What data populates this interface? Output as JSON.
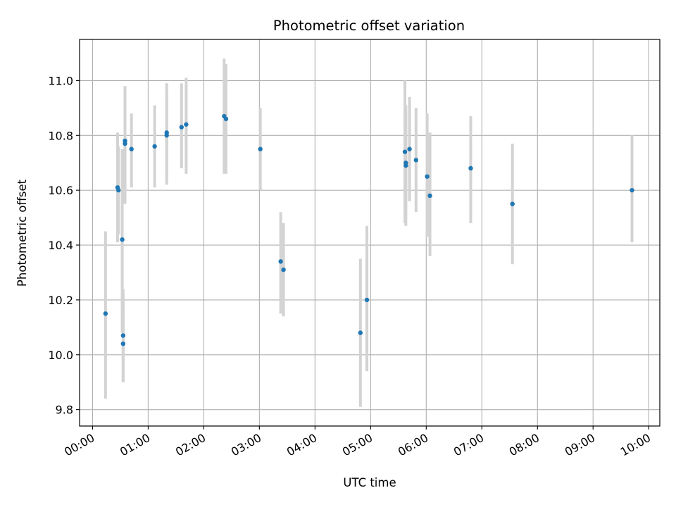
{
  "chart_data": {
    "type": "scatter",
    "title": "Photometric offset variation",
    "xlabel": "UTC time",
    "ylabel": "Photometric offset",
    "x_unit": "UTC time (HH:MM)",
    "xlim": [
      "23:46",
      "10:12"
    ],
    "ylim": [
      9.74,
      11.15
    ],
    "xticks": [
      "00:00",
      "01:00",
      "02:00",
      "03:00",
      "04:00",
      "05:00",
      "06:00",
      "07:00",
      "08:00",
      "09:00",
      "10:00"
    ],
    "yticks": [
      9.8,
      10.0,
      10.2,
      10.4,
      10.6,
      10.8,
      11.0
    ],
    "ytick_labels": [
      "9.8",
      "10.0",
      "10.2",
      "10.4",
      "10.6",
      "10.8",
      "11.0"
    ],
    "grid": true,
    "marker_color": "#1f77b4",
    "errorbar_color": "#d3d3d3",
    "points": [
      {
        "x": "00:14",
        "y": 10.15,
        "ylow": 9.84,
        "yhigh": 10.45
      },
      {
        "x": "00:27",
        "y": 10.61,
        "ylow": 10.41,
        "yhigh": 10.81
      },
      {
        "x": "00:28",
        "y": 10.6,
        "ylow": 10.44,
        "yhigh": 10.76
      },
      {
        "x": "00:32",
        "y": 10.42,
        "ylow": 10.08,
        "yhigh": 10.75
      },
      {
        "x": "00:33",
        "y": 10.07,
        "ylow": 9.9,
        "yhigh": 10.24
      },
      {
        "x": "00:33",
        "y": 10.04,
        "ylow": 9.9,
        "yhigh": 10.18
      },
      {
        "x": "00:35",
        "y": 10.78,
        "ylow": 10.57,
        "yhigh": 10.98
      },
      {
        "x": "00:35",
        "y": 10.77,
        "ylow": 10.55,
        "yhigh": 10.75
      },
      {
        "x": "00:42",
        "y": 10.75,
        "ylow": 10.61,
        "yhigh": 10.88
      },
      {
        "x": "01:07",
        "y": 10.76,
        "ylow": 10.61,
        "yhigh": 10.91
      },
      {
        "x": "01:20",
        "y": 10.81,
        "ylow": 10.62,
        "yhigh": 10.99
      },
      {
        "x": "01:20",
        "y": 10.8,
        "ylow": 10.65,
        "yhigh": 10.94
      },
      {
        "x": "01:36",
        "y": 10.83,
        "ylow": 10.68,
        "yhigh": 10.99
      },
      {
        "x": "01:41",
        "y": 10.84,
        "ylow": 10.66,
        "yhigh": 11.01
      },
      {
        "x": "02:22",
        "y": 10.87,
        "ylow": 10.66,
        "yhigh": 11.08
      },
      {
        "x": "02:24",
        "y": 10.86,
        "ylow": 10.66,
        "yhigh": 11.06
      },
      {
        "x": "03:01",
        "y": 10.75,
        "ylow": 10.6,
        "yhigh": 10.9
      },
      {
        "x": "03:23",
        "y": 10.34,
        "ylow": 10.15,
        "yhigh": 10.52
      },
      {
        "x": "03:26",
        "y": 10.31,
        "ylow": 10.14,
        "yhigh": 10.48
      },
      {
        "x": "04:49",
        "y": 10.08,
        "ylow": 9.81,
        "yhigh": 10.35
      },
      {
        "x": "04:56",
        "y": 10.2,
        "ylow": 9.94,
        "yhigh": 10.47
      },
      {
        "x": "05:37",
        "y": 10.74,
        "ylow": 10.48,
        "yhigh": 11.0
      },
      {
        "x": "05:38",
        "y": 10.7,
        "ylow": 10.51,
        "yhigh": 10.89
      },
      {
        "x": "05:38",
        "y": 10.69,
        "ylow": 10.47,
        "yhigh": 10.91
      },
      {
        "x": "05:42",
        "y": 10.75,
        "ylow": 10.56,
        "yhigh": 10.94
      },
      {
        "x": "05:49",
        "y": 10.71,
        "ylow": 10.52,
        "yhigh": 10.9
      },
      {
        "x": "06:01",
        "y": 10.65,
        "ylow": 10.43,
        "yhigh": 10.88
      },
      {
        "x": "06:04",
        "y": 10.58,
        "ylow": 10.36,
        "yhigh": 10.81
      },
      {
        "x": "06:48",
        "y": 10.68,
        "ylow": 10.48,
        "yhigh": 10.87
      },
      {
        "x": "07:33",
        "y": 10.55,
        "ylow": 10.33,
        "yhigh": 10.77
      },
      {
        "x": "09:42",
        "y": 10.6,
        "ylow": 10.41,
        "yhigh": 10.8
      }
    ]
  }
}
